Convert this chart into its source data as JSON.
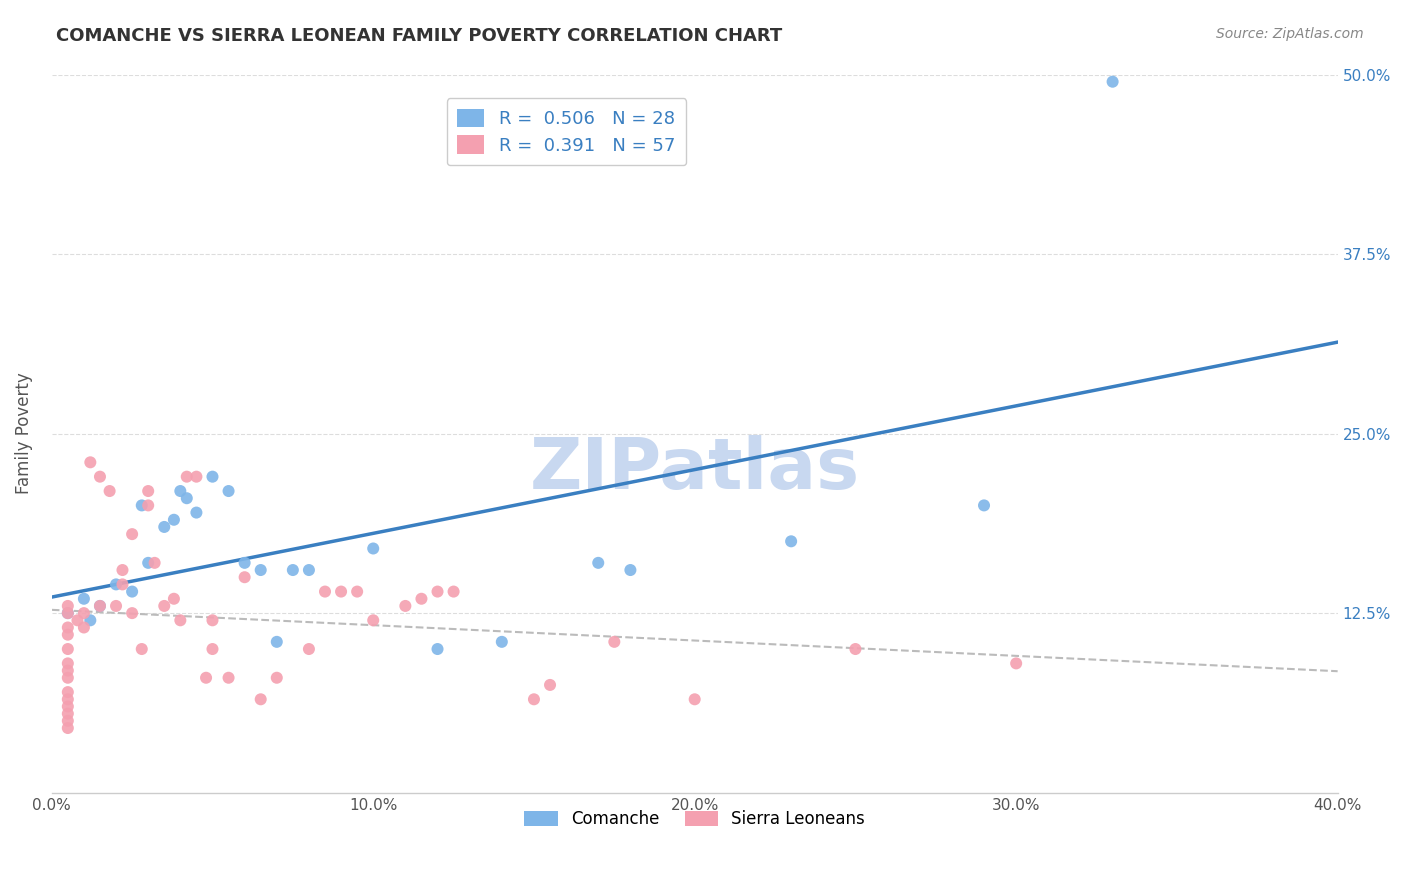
{
  "title": "COMANCHE VS SIERRA LEONEAN FAMILY POVERTY CORRELATION CHART",
  "source": "Source: ZipAtlas.com",
  "ylabel_label": "Family Poverty",
  "x_tick_labels": [
    "0.0%",
    "10.0%",
    "20.0%",
    "30.0%",
    "40.0%"
  ],
  "x_tick_values": [
    0.0,
    0.1,
    0.2,
    0.3,
    0.4
  ],
  "y_tick_labels": [
    "12.5%",
    "25.0%",
    "37.5%",
    "50.0%"
  ],
  "y_tick_values": [
    0.125,
    0.25,
    0.375,
    0.5
  ],
  "xlim": [
    0.0,
    0.4
  ],
  "ylim": [
    0.0,
    0.5
  ],
  "comanche_color": "#7eb5e8",
  "sierra_color": "#f4a0b0",
  "comanche_R": 0.506,
  "comanche_N": 28,
  "sierra_R": 0.391,
  "sierra_N": 57,
  "comanche_line_color": "#3a7fc1",
  "sierra_line_color": "#bbbbbb",
  "watermark_color": "#c8d8f0",
  "comanche_points": [
    [
      0.005,
      0.125
    ],
    [
      0.01,
      0.135
    ],
    [
      0.012,
      0.12
    ],
    [
      0.015,
      0.13
    ],
    [
      0.02,
      0.145
    ],
    [
      0.025,
      0.14
    ],
    [
      0.028,
      0.2
    ],
    [
      0.03,
      0.16
    ],
    [
      0.035,
      0.185
    ],
    [
      0.038,
      0.19
    ],
    [
      0.04,
      0.21
    ],
    [
      0.042,
      0.205
    ],
    [
      0.045,
      0.195
    ],
    [
      0.05,
      0.22
    ],
    [
      0.055,
      0.21
    ],
    [
      0.06,
      0.16
    ],
    [
      0.065,
      0.155
    ],
    [
      0.07,
      0.105
    ],
    [
      0.075,
      0.155
    ],
    [
      0.08,
      0.155
    ],
    [
      0.1,
      0.17
    ],
    [
      0.12,
      0.1
    ],
    [
      0.14,
      0.105
    ],
    [
      0.17,
      0.16
    ],
    [
      0.18,
      0.155
    ],
    [
      0.23,
      0.175
    ],
    [
      0.29,
      0.2
    ],
    [
      0.33,
      0.495
    ]
  ],
  "sierra_points": [
    [
      0.005,
      0.06
    ],
    [
      0.005,
      0.07
    ],
    [
      0.005,
      0.065
    ],
    [
      0.005,
      0.08
    ],
    [
      0.005,
      0.085
    ],
    [
      0.005,
      0.09
    ],
    [
      0.005,
      0.1
    ],
    [
      0.005,
      0.11
    ],
    [
      0.005,
      0.115
    ],
    [
      0.005,
      0.125
    ],
    [
      0.005,
      0.13
    ],
    [
      0.005,
      0.055
    ],
    [
      0.005,
      0.05
    ],
    [
      0.005,
      0.045
    ],
    [
      0.008,
      0.12
    ],
    [
      0.01,
      0.115
    ],
    [
      0.01,
      0.125
    ],
    [
      0.012,
      0.23
    ],
    [
      0.015,
      0.13
    ],
    [
      0.015,
      0.22
    ],
    [
      0.018,
      0.21
    ],
    [
      0.02,
      0.13
    ],
    [
      0.022,
      0.145
    ],
    [
      0.022,
      0.155
    ],
    [
      0.025,
      0.18
    ],
    [
      0.025,
      0.125
    ],
    [
      0.028,
      0.1
    ],
    [
      0.03,
      0.21
    ],
    [
      0.03,
      0.2
    ],
    [
      0.032,
      0.16
    ],
    [
      0.035,
      0.13
    ],
    [
      0.038,
      0.135
    ],
    [
      0.04,
      0.12
    ],
    [
      0.042,
      0.22
    ],
    [
      0.045,
      0.22
    ],
    [
      0.048,
      0.08
    ],
    [
      0.05,
      0.12
    ],
    [
      0.05,
      0.1
    ],
    [
      0.055,
      0.08
    ],
    [
      0.06,
      0.15
    ],
    [
      0.065,
      0.065
    ],
    [
      0.07,
      0.08
    ],
    [
      0.08,
      0.1
    ],
    [
      0.085,
      0.14
    ],
    [
      0.09,
      0.14
    ],
    [
      0.095,
      0.14
    ],
    [
      0.1,
      0.12
    ],
    [
      0.11,
      0.13
    ],
    [
      0.115,
      0.135
    ],
    [
      0.12,
      0.14
    ],
    [
      0.125,
      0.14
    ],
    [
      0.15,
      0.065
    ],
    [
      0.155,
      0.075
    ],
    [
      0.175,
      0.105
    ],
    [
      0.2,
      0.065
    ],
    [
      0.25,
      0.1
    ],
    [
      0.3,
      0.09
    ]
  ],
  "background_color": "#ffffff",
  "grid_color": "#dddddd",
  "legend_bottom_labels": [
    "Comanche",
    "Sierra Leoneans"
  ],
  "text_color_blue": "#3a7fc1",
  "text_color_dark": "#333333"
}
